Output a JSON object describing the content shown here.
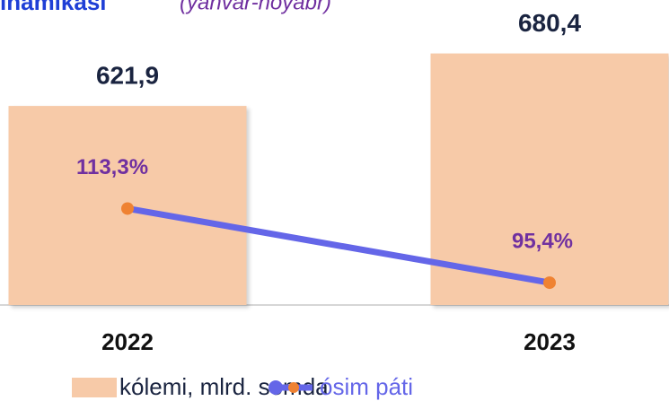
{
  "chart_data": {
    "type": "bar_line",
    "title": "inamikasi",
    "subtitle": "(yanvar-noyabr)",
    "categories": [
      "2022",
      "2023"
    ],
    "ylim": [
      400,
      700
    ],
    "y2lim": [
      90,
      155
    ],
    "series": [
      {
        "name": "kólemi, mlrd. somda",
        "type": "bar",
        "color": "#f7caa8",
        "values": [
          621.9,
          680.4
        ],
        "value_labels": [
          "621,9",
          "680,4"
        ]
      },
      {
        "name": "ósim páti",
        "type": "line",
        "axis": "y2",
        "color": "#6466e8",
        "marker_color": "#ef8232",
        "values": [
          113.3,
          95.4
        ],
        "value_labels": [
          "113,3%",
          "95,4%"
        ]
      }
    ]
  }
}
